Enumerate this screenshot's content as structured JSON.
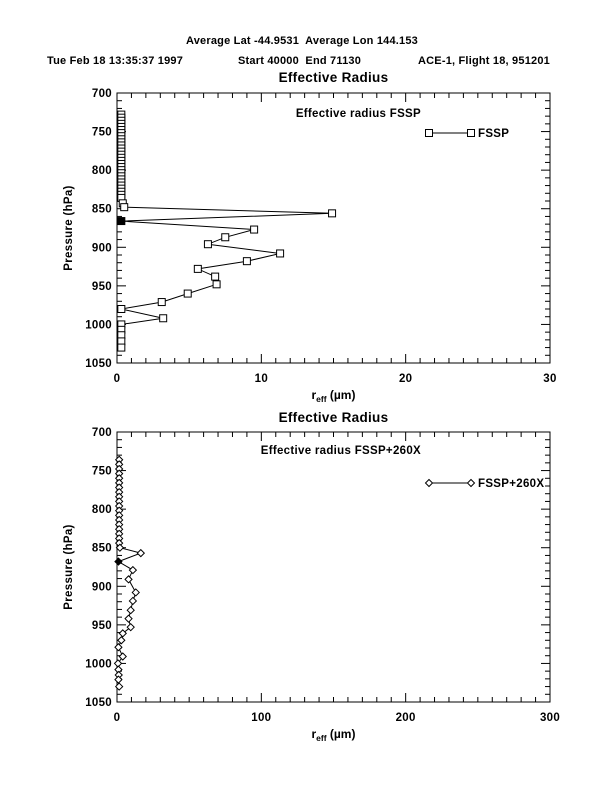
{
  "header": {
    "line1": "Average Lat -44.9531  Average Lon 144.153",
    "line2_left": "Tue Feb 18 13:35:37 1997",
    "line2_center": "Start 40000  End 71130",
    "line2_right": "ACE-1, Flight 18, 951201"
  },
  "colors": {
    "foreground": "#000000",
    "background": "#ffffff"
  },
  "chart_data": [
    {
      "type": "line",
      "title": "Effective Radius",
      "subtitle": "Effective radius FSSP",
      "legend": {
        "label": "FSSP",
        "marker": "square"
      },
      "xlabel": {
        "base": "r",
        "sub": "eff",
        "unit": " (µm)"
      },
      "ylabel": "Pressure (hPa)",
      "xlim": [
        0,
        30
      ],
      "ylim": [
        700,
        1050
      ],
      "xticks": [
        0,
        10,
        20,
        30
      ],
      "yticks": [
        700,
        750,
        800,
        850,
        900,
        950,
        1000,
        1050
      ],
      "x_minor_step": 1,
      "y_minor_step": 10,
      "grid": false,
      "series": [
        {
          "name": "FSSP",
          "marker": "square",
          "bold_point": [
            0.3,
            866
          ],
          "points": [
            [
              0.3,
              728
            ],
            [
              0.3,
              732
            ],
            [
              0.3,
              736
            ],
            [
              0.3,
              740
            ],
            [
              0.3,
              744
            ],
            [
              0.3,
              748
            ],
            [
              0.3,
              752
            ],
            [
              0.3,
              756
            ],
            [
              0.3,
              760
            ],
            [
              0.3,
              764
            ],
            [
              0.3,
              768
            ],
            [
              0.3,
              772
            ],
            [
              0.3,
              776
            ],
            [
              0.3,
              780
            ],
            [
              0.3,
              784
            ],
            [
              0.3,
              788
            ],
            [
              0.3,
              792
            ],
            [
              0.3,
              796
            ],
            [
              0.3,
              800
            ],
            [
              0.3,
              804
            ],
            [
              0.3,
              808
            ],
            [
              0.3,
              812
            ],
            [
              0.3,
              816
            ],
            [
              0.3,
              820
            ],
            [
              0.3,
              824
            ],
            [
              0.3,
              828
            ],
            [
              0.3,
              832
            ],
            [
              0.3,
              836
            ],
            [
              0.4,
              843
            ],
            [
              0.5,
              848
            ],
            [
              14.9,
              856
            ],
            [
              0.3,
              866
            ],
            [
              9.5,
              877
            ],
            [
              7.5,
              887
            ],
            [
              6.3,
              896
            ],
            [
              11.3,
              908
            ],
            [
              9.0,
              918
            ],
            [
              5.6,
              928
            ],
            [
              6.8,
              938
            ],
            [
              6.9,
              948
            ],
            [
              4.9,
              960
            ],
            [
              3.1,
              971
            ],
            [
              0.3,
              980
            ],
            [
              3.2,
              992
            ],
            [
              0.3,
              1000
            ],
            [
              0.3,
              1007
            ],
            [
              0.3,
              1014
            ],
            [
              0.3,
              1022
            ],
            [
              0.3,
              1030
            ]
          ]
        }
      ]
    },
    {
      "type": "line",
      "title": "Effective Radius",
      "subtitle": "Effective radius FSSP+260X",
      "legend": {
        "label": "FSSP+260X",
        "marker": "diamond"
      },
      "xlabel": {
        "base": "r",
        "sub": "eff",
        "unit": " (µm)"
      },
      "ylabel": "Pressure (hPa)",
      "xlim": [
        0,
        300
      ],
      "ylim": [
        700,
        1050
      ],
      "xticks": [
        0,
        100,
        200,
        300
      ],
      "yticks": [
        700,
        750,
        800,
        850,
        900,
        950,
        1000,
        1050
      ],
      "x_minor_step": 10,
      "y_minor_step": 10,
      "grid": false,
      "series": [
        {
          "name": "FSSP+260X",
          "marker": "diamond",
          "bold_point": [
            1,
            868
          ],
          "points": [
            [
              1.5,
              736
            ],
            [
              1.5,
              742
            ],
            [
              1.5,
              748
            ],
            [
              1.5,
              754
            ],
            [
              1.5,
              760
            ],
            [
              1.5,
              766
            ],
            [
              1.5,
              772
            ],
            [
              1.5,
              778
            ],
            [
              1.5,
              784
            ],
            [
              1.5,
              790
            ],
            [
              1.5,
              796
            ],
            [
              1.5,
              802
            ],
            [
              1.5,
              808
            ],
            [
              1.5,
              814
            ],
            [
              1.5,
              820
            ],
            [
              1.5,
              826
            ],
            [
              1.5,
              832
            ],
            [
              1.5,
              838
            ],
            [
              1.5,
              844
            ],
            [
              2,
              850
            ],
            [
              16.5,
              857
            ],
            [
              1,
              868
            ],
            [
              11,
              879
            ],
            [
              8,
              891
            ],
            [
              13,
              908
            ],
            [
              11,
              919
            ],
            [
              9.5,
              931
            ],
            [
              8,
              942
            ],
            [
              9.5,
              953
            ],
            [
              4,
              961
            ],
            [
              3,
              970
            ],
            [
              1,
              979
            ],
            [
              4,
              991
            ],
            [
              0.7,
              1000
            ],
            [
              1,
              1008
            ],
            [
              1.2,
              1015
            ],
            [
              1,
              1021
            ],
            [
              1.5,
              1030
            ]
          ]
        }
      ]
    }
  ]
}
